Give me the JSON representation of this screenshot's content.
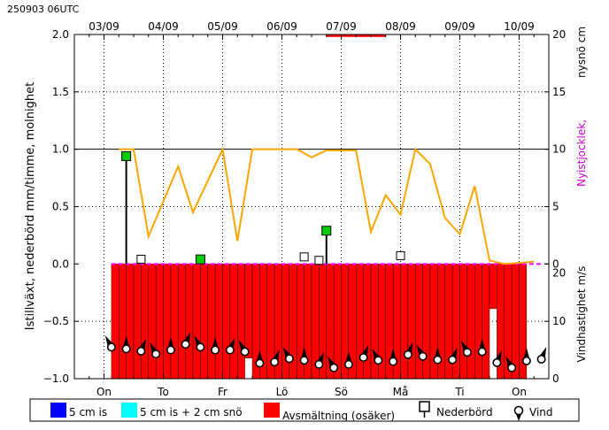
{
  "header": {
    "run_label": "250903 06UTC"
  },
  "chart_data": {
    "type": "composite",
    "top_date_labels": [
      "03/09",
      "04/09",
      "05/09",
      "06/09",
      "07/09",
      "08/09",
      "09/09",
      "10/09"
    ],
    "bottom_day_labels": [
      "On",
      "To",
      "Fr",
      "Lö",
      "Sö",
      "Må",
      "Ti",
      "On"
    ],
    "left_axis": {
      "label": "Istillväxt, nederbörd mm/timme, molnighet",
      "ylim": [
        -1.0,
        2.0
      ],
      "ticks": [
        "2.0",
        "1.5",
        "1.0",
        "0.5",
        "0.0",
        "−0.5",
        "−1.0"
      ]
    },
    "right_axis_top": {
      "label_main": "nysnö cm",
      "label_sub": "Nyistjocklek,",
      "label_sub_color": "#cc00cc",
      "ticks": [
        "20",
        "15",
        "10",
        "5",
        "0"
      ]
    },
    "right_axis_bottom": {
      "label": "Vindhastighet m/s",
      "ticks": [
        "20",
        "10",
        "0"
      ]
    },
    "hours_total": 192,
    "cloudiness": {
      "color": "#ffa500",
      "points": [
        [
          18,
          1.0
        ],
        [
          24,
          1.0
        ],
        [
          30,
          0.24
        ],
        [
          42,
          0.85
        ],
        [
          48,
          0.45
        ],
        [
          60,
          1.0
        ],
        [
          66,
          0.2
        ],
        [
          72,
          1.0
        ],
        [
          90,
          1.0
        ],
        [
          96,
          0.93
        ],
        [
          102,
          0.99
        ],
        [
          114,
          0.99
        ],
        [
          120,
          0.28
        ],
        [
          126,
          0.6
        ],
        [
          132,
          0.43
        ],
        [
          138,
          1.0
        ],
        [
          144,
          0.87
        ],
        [
          150,
          0.4
        ],
        [
          156,
          0.26
        ],
        [
          162,
          0.68
        ],
        [
          168,
          0.03
        ],
        [
          174,
          0.0
        ],
        [
          186,
          0.02
        ]
      ]
    },
    "precipitation": {
      "color": "#000000",
      "marker_color": "#00cc00",
      "points": [
        [
          21,
          0.94
        ],
        [
          51,
          0.04
        ],
        [
          102,
          0.29
        ]
      ]
    },
    "new_snow": {
      "points": [
        [
          27,
          0.03
        ],
        [
          93,
          0.05
        ],
        [
          99,
          0.02
        ],
        [
          132,
          0.06
        ]
      ]
    },
    "ice_growth_line": {
      "color": "#ff00ff",
      "from": 15,
      "to": 189
    },
    "melting": {
      "color": "#ff0000",
      "bars": [
        [
          15,
          18,
          -1.0
        ],
        [
          18,
          21,
          -1.0
        ],
        [
          21,
          24,
          -1.0
        ],
        [
          24,
          27,
          -1.0
        ],
        [
          27,
          30,
          -1.0
        ],
        [
          30,
          33,
          -1.0
        ],
        [
          33,
          36,
          -1.0
        ],
        [
          36,
          39,
          -1.0
        ],
        [
          39,
          42,
          -1.0
        ],
        [
          42,
          45,
          -1.0
        ],
        [
          45,
          48,
          -1.0
        ],
        [
          48,
          51,
          -1.0
        ],
        [
          51,
          54,
          -1.0
        ],
        [
          54,
          57,
          -1.0
        ],
        [
          57,
          60,
          -1.0
        ],
        [
          60,
          63,
          -1.0
        ],
        [
          63,
          66,
          -1.0
        ],
        [
          66,
          69,
          -1.0
        ],
        [
          69,
          72,
          -0.82
        ],
        [
          72,
          75,
          -1.0
        ],
        [
          75,
          78,
          -1.0
        ],
        [
          78,
          81,
          -1.0
        ],
        [
          81,
          84,
          -1.0
        ],
        [
          84,
          87,
          -1.0
        ],
        [
          87,
          90,
          -1.0
        ],
        [
          90,
          93,
          -1.0
        ],
        [
          93,
          96,
          -1.0
        ],
        [
          96,
          99,
          -1.0
        ],
        [
          99,
          102,
          -1.0
        ],
        [
          102,
          105,
          -1.0
        ],
        [
          105,
          108,
          -1.0
        ],
        [
          108,
          111,
          -1.0
        ],
        [
          111,
          114,
          -1.0
        ],
        [
          114,
          117,
          -1.0
        ],
        [
          117,
          120,
          -1.0
        ],
        [
          120,
          123,
          -1.0
        ],
        [
          123,
          126,
          -1.0
        ],
        [
          126,
          129,
          -1.0
        ],
        [
          129,
          132,
          -1.0
        ],
        [
          132,
          135,
          -1.0
        ],
        [
          135,
          138,
          -1.0
        ],
        [
          138,
          141,
          -1.0
        ],
        [
          141,
          144,
          -1.0
        ],
        [
          144,
          147,
          -1.0
        ],
        [
          147,
          150,
          -1.0
        ],
        [
          150,
          153,
          -1.0
        ],
        [
          153,
          156,
          -1.0
        ],
        [
          156,
          159,
          -1.0
        ],
        [
          159,
          162,
          -1.0
        ],
        [
          162,
          165,
          -1.0
        ],
        [
          165,
          168,
          -1.0
        ],
        [
          168,
          171,
          -0.39
        ],
        [
          171,
          174,
          -1.0
        ],
        [
          174,
          177,
          -1.0
        ],
        [
          177,
          180,
          -1.0
        ],
        [
          180,
          183,
          -1.0
        ]
      ]
    },
    "top_red_bar": {
      "color": "#ff0000",
      "from": 102,
      "to": 126,
      "value": 1.99
    },
    "wind": {
      "points": [
        [
          15,
          5.5
        ],
        [
          21,
          5.2
        ],
        [
          27,
          4.8
        ],
        [
          33,
          4.3
        ],
        [
          39,
          5.0
        ],
        [
          45,
          6.0
        ],
        [
          51,
          5.5
        ],
        [
          57,
          5.0
        ],
        [
          63,
          5.0
        ],
        [
          69,
          4.7
        ],
        [
          75,
          2.7
        ],
        [
          81,
          2.9
        ],
        [
          87,
          3.5
        ],
        [
          93,
          3.2
        ],
        [
          99,
          2.5
        ],
        [
          105,
          1.9
        ],
        [
          111,
          2.5
        ],
        [
          117,
          3.7
        ],
        [
          123,
          3.2
        ],
        [
          129,
          3.0
        ],
        [
          135,
          4.2
        ],
        [
          141,
          3.9
        ],
        [
          147,
          3.3
        ],
        [
          153,
          3.3
        ],
        [
          159,
          4.6
        ],
        [
          165,
          4.7
        ],
        [
          171,
          2.8
        ],
        [
          177,
          1.9
        ],
        [
          183,
          3.1
        ],
        [
          189,
          3.4
        ]
      ]
    },
    "legend": [
      {
        "label": "5 cm is",
        "color": "#0000ff",
        "kind": "box"
      },
      {
        "label": "5 cm is + 2 cm snö",
        "color": "#00ffff",
        "kind": "box"
      },
      {
        "label": "Avsmältning (osäker)",
        "color": "#ff0000",
        "kind": "box"
      },
      {
        "label": "Nederbörd",
        "kind": "precip-marker"
      },
      {
        "label": "Vind",
        "kind": "wind-marker"
      }
    ]
  }
}
